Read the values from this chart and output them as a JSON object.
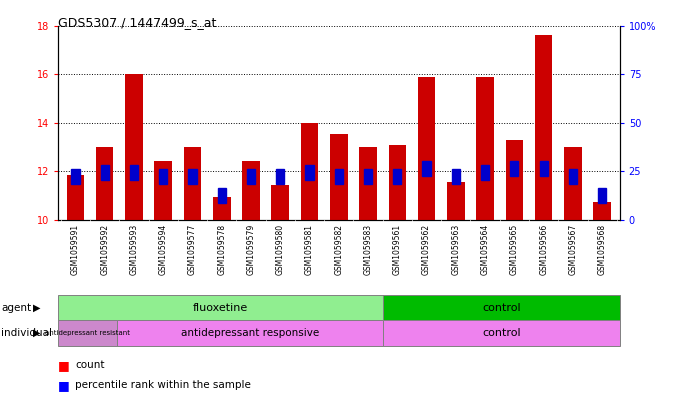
{
  "title": "GDS5307 / 1447499_s_at",
  "samples": [
    "GSM1059591",
    "GSM1059592",
    "GSM1059593",
    "GSM1059594",
    "GSM1059577",
    "GSM1059578",
    "GSM1059579",
    "GSM1059580",
    "GSM1059581",
    "GSM1059582",
    "GSM1059583",
    "GSM1059561",
    "GSM1059562",
    "GSM1059563",
    "GSM1059564",
    "GSM1059565",
    "GSM1059566",
    "GSM1059567",
    "GSM1059568"
  ],
  "counts": [
    11.85,
    13.0,
    16.0,
    12.45,
    13.0,
    10.95,
    12.45,
    11.45,
    14.0,
    13.55,
    13.0,
    13.1,
    15.9,
    11.55,
    15.9,
    13.3,
    17.6,
    13.0,
    10.75
  ],
  "percentiles": [
    20,
    22,
    22,
    20,
    20,
    10,
    20,
    20,
    22,
    20,
    20,
    20,
    24,
    20,
    22,
    24,
    24,
    20,
    10
  ],
  "ymin": 10,
  "ymax": 18,
  "yleft_ticks": [
    10,
    12,
    14,
    16,
    18
  ],
  "yright_ticks": [
    0,
    25,
    50,
    75,
    100
  ],
  "bar_color": "#cc0000",
  "dot_color": "#0000cc",
  "plot_bg": "#ffffff",
  "xtick_bg": "#d3d3d3",
  "agent_fluoxetine_color": "#90ee90",
  "agent_control_color": "#00bb00",
  "ind_resistant_color": "#cc88cc",
  "ind_responsive_color": "#ee82ee",
  "ind_control_color": "#ee82ee",
  "fluox_n": 11,
  "resistant_n": 2,
  "responsive_n": 9,
  "control_n": 8
}
